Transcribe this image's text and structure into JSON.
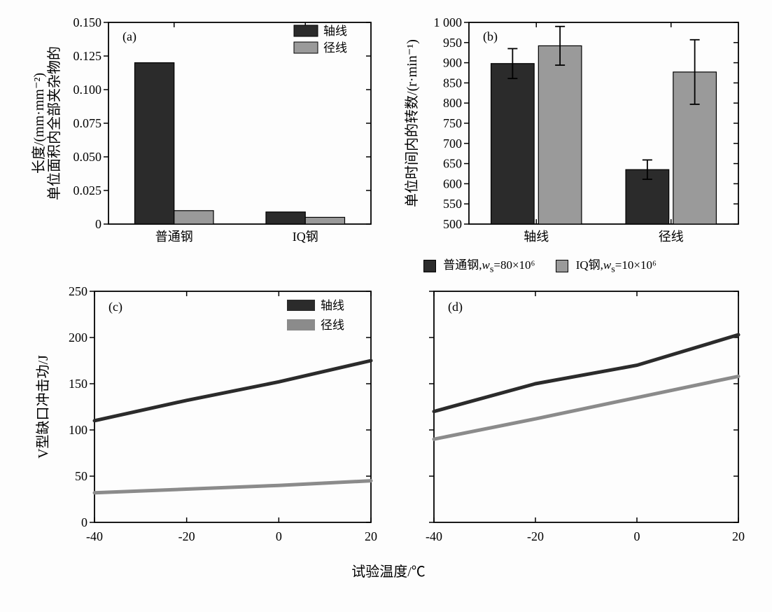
{
  "figure": {
    "background_color": "#fdfdfd",
    "font_family": "SimSun",
    "tick_fontsize": 18,
    "label_fontsize": 20,
    "panel_label_fontsize": 18,
    "axis_color": "#000000",
    "tick_length": 7
  },
  "panel_a": {
    "type": "bar",
    "label": "(a)",
    "ylabel": "单位面积内全部夹杂物的\n长度/(mm·mm⁻²)",
    "ylim": [
      0,
      0.15
    ],
    "yticks": [
      0,
      0.025,
      0.05,
      0.075,
      0.1,
      0.125,
      0.15
    ],
    "ytick_labels": [
      "0",
      "0.025",
      "0.050",
      "0.075",
      "0.100",
      "0.125",
      "0.150"
    ],
    "categories": [
      "普通钢",
      "IQ钢"
    ],
    "series": [
      {
        "name": "轴线",
        "color": "#2b2b2b",
        "values": [
          0.12,
          0.009
        ]
      },
      {
        "name": "径线",
        "color": "#9a9a9a",
        "values": [
          0.01,
          0.005
        ]
      }
    ],
    "bar_width": 0.3,
    "bar_border": "#000000",
    "legend_pos": "top-right"
  },
  "panel_b": {
    "type": "bar",
    "label": "(b)",
    "ylabel": "单位时间内的转数/(r·min⁻¹)",
    "ylim": [
      500,
      1000
    ],
    "yticks": [
      500,
      550,
      600,
      650,
      700,
      750,
      800,
      850,
      900,
      950,
      1000
    ],
    "ytick_labels": [
      "500",
      "550",
      "600",
      "650",
      "700",
      "750",
      "800",
      "850",
      "900",
      "950",
      "1 000"
    ],
    "categories": [
      "轴线",
      "径线"
    ],
    "series": [
      {
        "name": "普通钢,wₛ=80×10⁶",
        "color": "#2b2b2b",
        "values": [
          898,
          635
        ],
        "err": [
          37,
          24
        ]
      },
      {
        "name": "IQ钢,wₛ=10×10⁶",
        "color": "#9a9a9a",
        "values": [
          942,
          877
        ],
        "err": [
          48,
          80
        ]
      }
    ],
    "bar_width": 0.32,
    "bar_border": "#000000",
    "error_cap_width": 14,
    "error_color": "#000000"
  },
  "legend_b": {
    "items": [
      {
        "swatch": "#2b2b2b",
        "label_prefix": "普通钢,",
        "var": "w",
        "sub": "s",
        "rest": "=80×10⁶"
      },
      {
        "swatch": "#9a9a9a",
        "label_prefix": "IQ钢,",
        "var": "w",
        "sub": "s",
        "rest": "=10×10⁶"
      }
    ]
  },
  "panel_c": {
    "type": "line",
    "label": "(c)",
    "ylabel": "V型缺口冲击功/J",
    "show_ylabel": true,
    "xlim": [
      -40,
      20
    ],
    "xticks": [
      -40,
      -20,
      0,
      20
    ],
    "xtick_labels": [
      "-40",
      "-20",
      "0",
      "20"
    ],
    "ylim": [
      0,
      250
    ],
    "yticks": [
      0,
      50,
      100,
      150,
      200,
      250
    ],
    "ytick_labels": [
      "0",
      "50",
      "100",
      "150",
      "200",
      "250"
    ],
    "series": [
      {
        "name": "轴线",
        "color": "#2b2b2b",
        "linewidth": 5,
        "x": [
          -40,
          -20,
          0,
          20
        ],
        "y": [
          110,
          132,
          152,
          175
        ]
      },
      {
        "name": "径线",
        "color": "#8b8b8b",
        "linewidth": 5,
        "x": [
          -40,
          -20,
          0,
          20
        ],
        "y": [
          32,
          36,
          40,
          45
        ]
      }
    ],
    "legend_pos": "top-right"
  },
  "panel_d": {
    "type": "line",
    "label": "(d)",
    "show_ylabel": false,
    "xlim": [
      -40,
      20
    ],
    "xticks": [
      -40,
      -20,
      0,
      20
    ],
    "xtick_labels": [
      "-40",
      "-20",
      "0",
      "20"
    ],
    "ylim": [
      0,
      250
    ],
    "yticks": [
      0,
      50,
      100,
      150,
      200,
      250
    ],
    "series": [
      {
        "name": "轴线",
        "color": "#2b2b2b",
        "linewidth": 5,
        "x": [
          -40,
          -20,
          0,
          20
        ],
        "y": [
          120,
          150,
          170,
          203
        ]
      },
      {
        "name": "径线",
        "color": "#8b8b8b",
        "linewidth": 5,
        "x": [
          -40,
          -20,
          0,
          20
        ],
        "y": [
          90,
          112,
          135,
          158
        ]
      }
    ]
  },
  "shared_xlabel": "试验温度/℃"
}
